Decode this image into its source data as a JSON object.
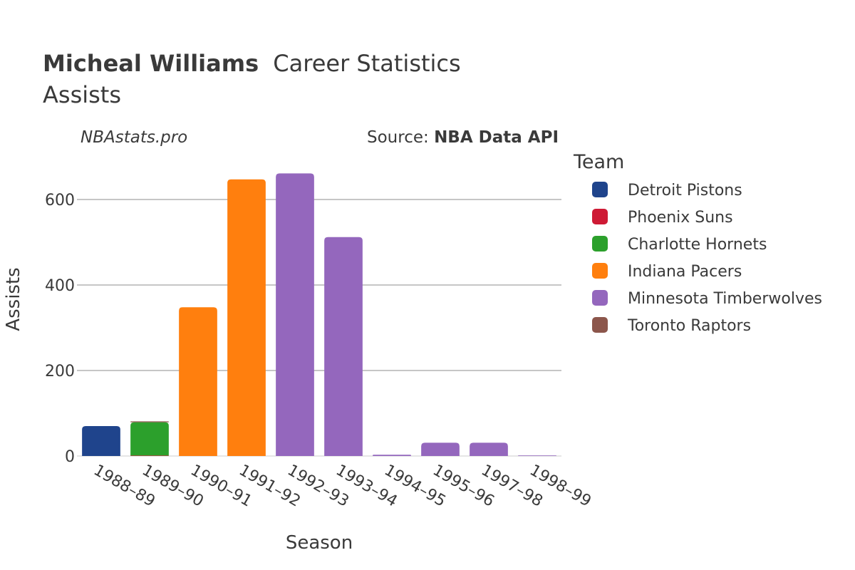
{
  "chart_data": {
    "type": "bar",
    "title_bold": "Micheal Williams",
    "title_rest": "Career Statistics",
    "subtitle": "Assists",
    "watermark": "NBAstats.pro",
    "source_prefix": "Source: ",
    "source_name": "NBA Data API",
    "xlabel": "Season",
    "ylabel": "Assists",
    "ylim": [
      0,
      700
    ],
    "yticks": [
      0,
      200,
      400,
      600
    ],
    "categories": [
      "1988–89",
      "1989–90",
      "1990–91",
      "1991–92",
      "1992–93",
      "1993–94",
      "1994–95",
      "1995–96",
      "1997–98",
      "1998–99"
    ],
    "legend_title": "Team",
    "series": [
      {
        "name": "Detroit Pistons",
        "color": "#1f448c",
        "values": [
          70,
          0,
          0,
          0,
          0,
          0,
          0,
          0,
          0,
          0
        ]
      },
      {
        "name": "Phoenix Suns",
        "color": "#ce1a35",
        "values": [
          0,
          1,
          0,
          0,
          0,
          0,
          0,
          0,
          0,
          0
        ]
      },
      {
        "name": "Charlotte Hornets",
        "color": "#2ca02c",
        "values": [
          0,
          78,
          0,
          0,
          0,
          0,
          0,
          0,
          0,
          0
        ]
      },
      {
        "name": "Indiana Pacers",
        "color": "#ff7f0e",
        "values": [
          0,
          0,
          348,
          647,
          0,
          0,
          0,
          0,
          0,
          0
        ]
      },
      {
        "name": "Minnesota Timberwolves",
        "color": "#9467bd",
        "values": [
          0,
          0,
          0,
          0,
          661,
          512,
          3,
          31,
          31,
          1
        ]
      },
      {
        "name": "Toronto Raptors",
        "color": "#8c564b",
        "values": [
          0,
          2,
          0,
          0,
          0,
          0,
          0,
          0,
          0,
          0
        ]
      }
    ]
  }
}
